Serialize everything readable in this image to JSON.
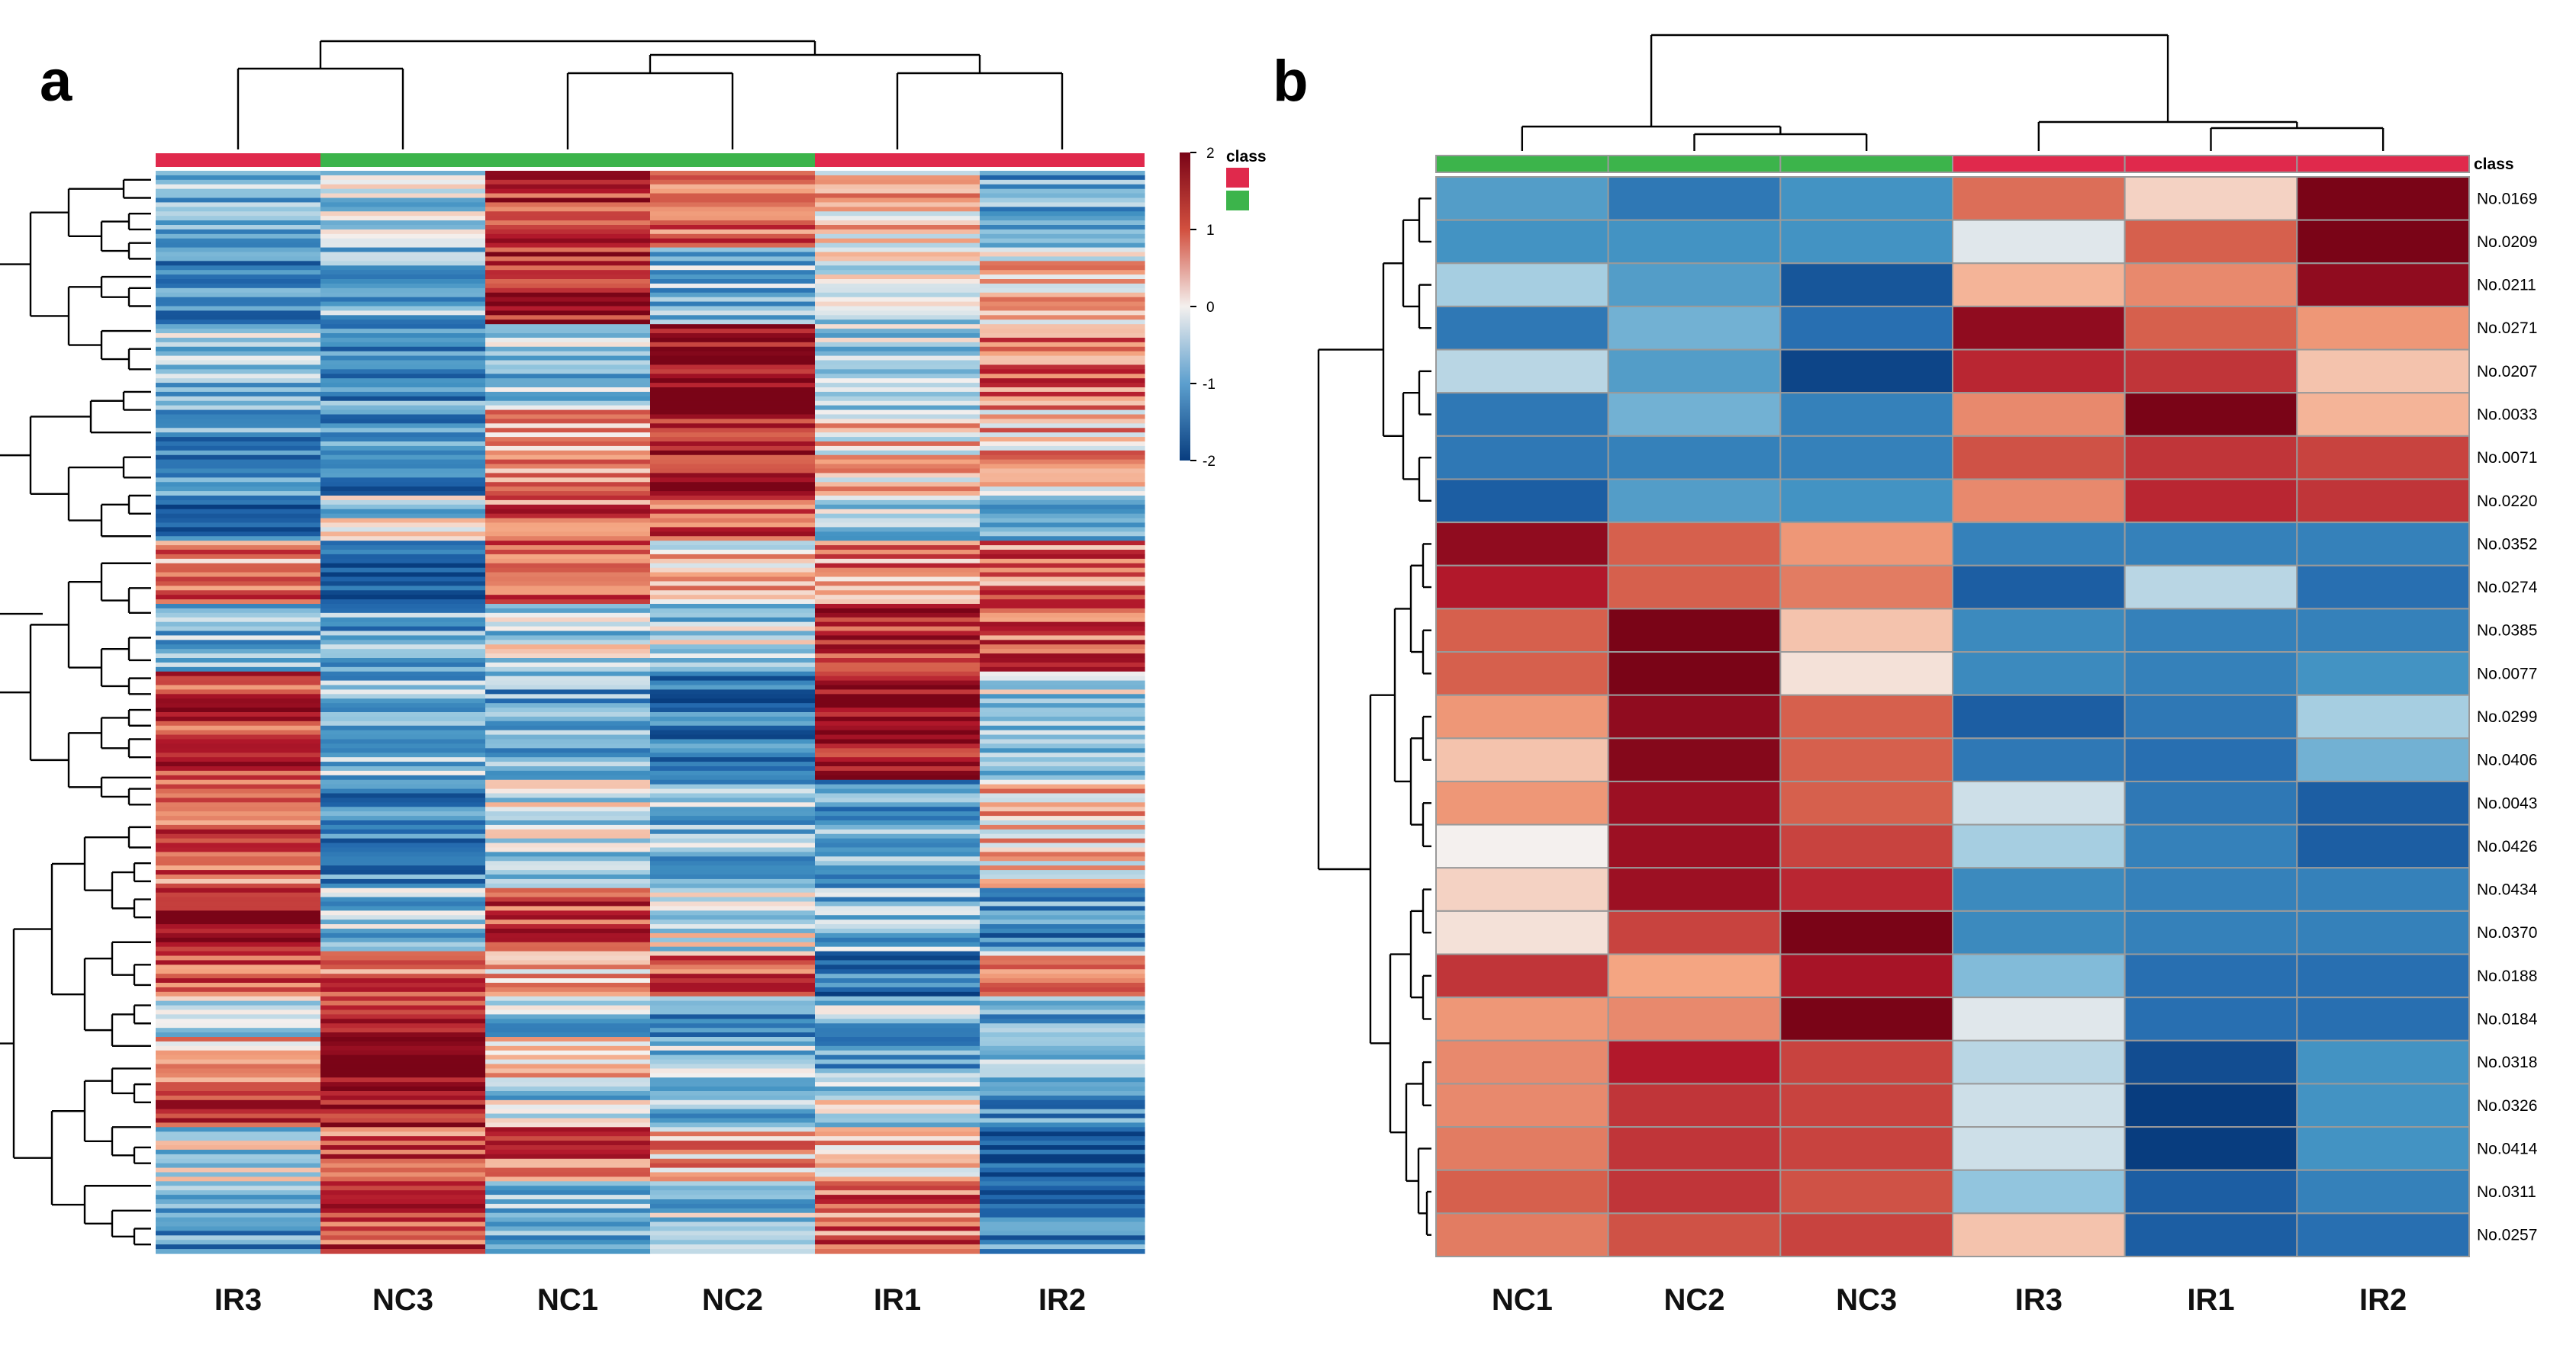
{
  "chart_data": [
    {
      "panel": "a",
      "type": "heatmap",
      "columns": [
        "IR3",
        "NC3",
        "NC1",
        "NC2",
        "IR1",
        "IR2"
      ],
      "column_class": [
        "IR",
        "NC",
        "NC",
        "NC",
        "IR",
        "IR"
      ],
      "row_count": 240,
      "row_labels_shown": false,
      "value_range": [
        -2,
        2
      ],
      "colorscale": {
        "type": "diverging",
        "low": "#083d7f",
        "mid": "#f4f0ee",
        "high": "#7a0417"
      },
      "legend": {
        "title": "class",
        "ticks": [
          "2",
          "1",
          "0",
          "-1",
          "-2"
        ],
        "placement": "top-right"
      },
      "column_dendrogram": true,
      "row_dendrogram": true,
      "classes": [
        {
          "name": "IR",
          "color": "#e0294c"
        },
        {
          "name": "NC",
          "color": "#3cb44b"
        }
      ],
      "column_value_bands": {
        "IR3": [
          [
            0.0,
            -0.8
          ],
          [
            0.07,
            -1.2
          ],
          [
            0.14,
            -0.6
          ],
          [
            0.22,
            -1.0
          ],
          [
            0.3,
            -1.6
          ],
          [
            0.34,
            0.8
          ],
          [
            0.4,
            -0.7
          ],
          [
            0.46,
            1.3
          ],
          [
            0.56,
            1.0
          ],
          [
            0.66,
            1.8
          ],
          [
            0.72,
            0.9
          ],
          [
            0.76,
            -0.3
          ],
          [
            0.8,
            0.6
          ],
          [
            0.84,
            1.2
          ],
          [
            0.88,
            -0.3
          ],
          [
            0.93,
            -1.0
          ],
          [
            1.0,
            -1.0
          ]
        ],
        "NC3": [
          [
            0.0,
            -0.4
          ],
          [
            0.07,
            -0.7
          ],
          [
            0.14,
            -1.1
          ],
          [
            0.22,
            -1.2
          ],
          [
            0.3,
            -0.3
          ],
          [
            0.34,
            -1.8
          ],
          [
            0.4,
            -0.9
          ],
          [
            0.46,
            -0.6
          ],
          [
            0.56,
            -1.1
          ],
          [
            0.66,
            -0.6
          ],
          [
            0.72,
            1.0
          ],
          [
            0.76,
            1.4
          ],
          [
            0.8,
            1.9
          ],
          [
            0.84,
            1.7
          ],
          [
            0.88,
            1.1
          ],
          [
            0.93,
            1.2
          ],
          [
            1.0,
            1.2
          ]
        ],
        "NC1": [
          [
            0.0,
            1.4
          ],
          [
            0.07,
            1.6
          ],
          [
            0.14,
            -0.5
          ],
          [
            0.22,
            0.6
          ],
          [
            0.3,
            1.0
          ],
          [
            0.34,
            0.9
          ],
          [
            0.4,
            -0.3
          ],
          [
            0.46,
            -0.9
          ],
          [
            0.56,
            -0.3
          ],
          [
            0.66,
            1.2
          ],
          [
            0.72,
            0.4
          ],
          [
            0.76,
            -0.6
          ],
          [
            0.8,
            0.2
          ],
          [
            0.84,
            -0.4
          ],
          [
            0.88,
            1.1
          ],
          [
            0.93,
            -0.6
          ],
          [
            1.0,
            -0.6
          ]
        ],
        "NC2": [
          [
            0.0,
            0.9
          ],
          [
            0.07,
            -0.6
          ],
          [
            0.14,
            1.9
          ],
          [
            0.22,
            1.7
          ],
          [
            0.3,
            1.1
          ],
          [
            0.34,
            0.3
          ],
          [
            0.4,
            -0.4
          ],
          [
            0.46,
            -1.4
          ],
          [
            0.56,
            -0.6
          ],
          [
            0.66,
            -0.1
          ],
          [
            0.72,
            0.9
          ],
          [
            0.76,
            -1.0
          ],
          [
            0.8,
            -0.6
          ],
          [
            0.84,
            -0.8
          ],
          [
            0.88,
            0.5
          ],
          [
            0.93,
            -0.5
          ],
          [
            1.0,
            -0.5
          ]
        ],
        "IR1": [
          [
            0.0,
            0.4
          ],
          [
            0.07,
            -0.2
          ],
          [
            0.14,
            -0.5
          ],
          [
            0.22,
            0.3
          ],
          [
            0.3,
            -0.4
          ],
          [
            0.34,
            0.8
          ],
          [
            0.4,
            1.4
          ],
          [
            0.46,
            1.6
          ],
          [
            0.56,
            -0.9
          ],
          [
            0.66,
            -0.7
          ],
          [
            0.72,
            -1.3
          ],
          [
            0.76,
            -0.6
          ],
          [
            0.8,
            -0.8
          ],
          [
            0.84,
            -0.2
          ],
          [
            0.88,
            0.4
          ],
          [
            0.93,
            1.0
          ],
          [
            1.0,
            1.0
          ]
        ],
        "IR2": [
          [
            0.0,
            -0.9
          ],
          [
            0.07,
            0.3
          ],
          [
            0.14,
            1.0
          ],
          [
            0.22,
            0.5
          ],
          [
            0.3,
            -0.6
          ],
          [
            0.34,
            0.9
          ],
          [
            0.4,
            1.0
          ],
          [
            0.46,
            -0.4
          ],
          [
            0.56,
            0.3
          ],
          [
            0.66,
            -1.1
          ],
          [
            0.72,
            0.6
          ],
          [
            0.76,
            -0.7
          ],
          [
            0.8,
            -0.7
          ],
          [
            0.84,
            -1.2
          ],
          [
            0.88,
            -1.8
          ],
          [
            0.93,
            -1.2
          ],
          [
            1.0,
            -1.2
          ]
        ]
      }
    },
    {
      "panel": "b",
      "type": "heatmap",
      "columns": [
        "NC1",
        "NC2",
        "NC3",
        "IR3",
        "IR1",
        "IR2"
      ],
      "column_class": [
        "NC",
        "NC",
        "NC",
        "IR",
        "IR",
        "IR"
      ],
      "class_label": "class",
      "value_range": [
        -2,
        2
      ],
      "column_dendrogram": true,
      "row_dendrogram": true,
      "rows": [
        {
          "label": "No.0169",
          "values": [
            -0.9,
            -1.3,
            -1.0,
            0.9,
            0.2,
            2.0
          ]
        },
        {
          "label": "No.0209",
          "values": [
            -1.0,
            -1.0,
            -1.0,
            -0.1,
            1.0,
            2.0
          ]
        },
        {
          "label": "No.0211",
          "values": [
            -0.4,
            -0.9,
            -1.7,
            0.4,
            0.7,
            1.8
          ]
        },
        {
          "label": "No.0271",
          "values": [
            -1.3,
            -0.7,
            -1.4,
            1.8,
            1.0,
            0.6
          ]
        },
        {
          "label": "No.0207",
          "values": [
            -0.3,
            -0.9,
            -1.9,
            1.4,
            1.3,
            0.3
          ]
        },
        {
          "label": "No.0033",
          "values": [
            -1.3,
            -0.7,
            -1.2,
            0.7,
            2.0,
            0.4
          ]
        },
        {
          "label": "No.0071",
          "values": [
            -1.3,
            -1.2,
            -1.2,
            1.1,
            1.3,
            1.2
          ]
        },
        {
          "label": "No.0220",
          "values": [
            -1.6,
            -0.9,
            -1.0,
            0.7,
            1.4,
            1.3
          ]
        },
        {
          "label": "No.0352",
          "values": [
            1.8,
            1.0,
            0.6,
            -1.2,
            -1.2,
            -1.2
          ]
        },
        {
          "label": "No.0274",
          "values": [
            1.5,
            1.0,
            0.8,
            -1.6,
            -0.3,
            -1.4
          ]
        },
        {
          "label": "No.0385",
          "values": [
            1.0,
            2.0,
            0.3,
            -1.1,
            -1.2,
            -1.2
          ]
        },
        {
          "label": "No.0077",
          "values": [
            1.0,
            2.0,
            0.1,
            -1.1,
            -1.2,
            -1.0
          ]
        },
        {
          "label": "No.0299",
          "values": [
            0.6,
            1.8,
            1.0,
            -1.6,
            -1.3,
            -0.4
          ]
        },
        {
          "label": "No.0406",
          "values": [
            0.3,
            1.9,
            1.0,
            -1.3,
            -1.4,
            -0.7
          ]
        },
        {
          "label": "No.0043",
          "values": [
            0.6,
            1.7,
            1.0,
            -0.2,
            -1.3,
            -1.6
          ]
        },
        {
          "label": "No.0426",
          "values": [
            0.0,
            1.7,
            1.2,
            -0.4,
            -1.2,
            -1.6
          ]
        },
        {
          "label": "No.0434",
          "values": [
            0.2,
            1.7,
            1.4,
            -1.1,
            -1.2,
            -1.2
          ]
        },
        {
          "label": "No.0370",
          "values": [
            0.1,
            1.2,
            2.0,
            -1.1,
            -1.2,
            -1.2
          ]
        },
        {
          "label": "No.0188",
          "values": [
            1.3,
            0.5,
            1.6,
            -0.6,
            -1.4,
            -1.4
          ]
        },
        {
          "label": "No.0184",
          "values": [
            0.6,
            0.7,
            2.0,
            -0.1,
            -1.4,
            -1.4
          ]
        },
        {
          "label": "No.0318",
          "values": [
            0.7,
            1.5,
            1.2,
            -0.3,
            -1.8,
            -1.0
          ]
        },
        {
          "label": "No.0326",
          "values": [
            0.7,
            1.3,
            1.2,
            -0.2,
            -2.0,
            -1.0
          ]
        },
        {
          "label": "No.0414",
          "values": [
            0.8,
            1.3,
            1.2,
            -0.2,
            -2.0,
            -1.0
          ]
        },
        {
          "label": "No.0311",
          "values": [
            1.0,
            1.3,
            1.1,
            -0.5,
            -1.6,
            -1.2
          ]
        },
        {
          "label": "No.0257",
          "values": [
            0.8,
            1.1,
            1.2,
            0.3,
            -1.6,
            -1.4
          ]
        }
      ]
    }
  ],
  "panel_labels": {
    "a": "a",
    "b": "b"
  },
  "legend_title": "class"
}
